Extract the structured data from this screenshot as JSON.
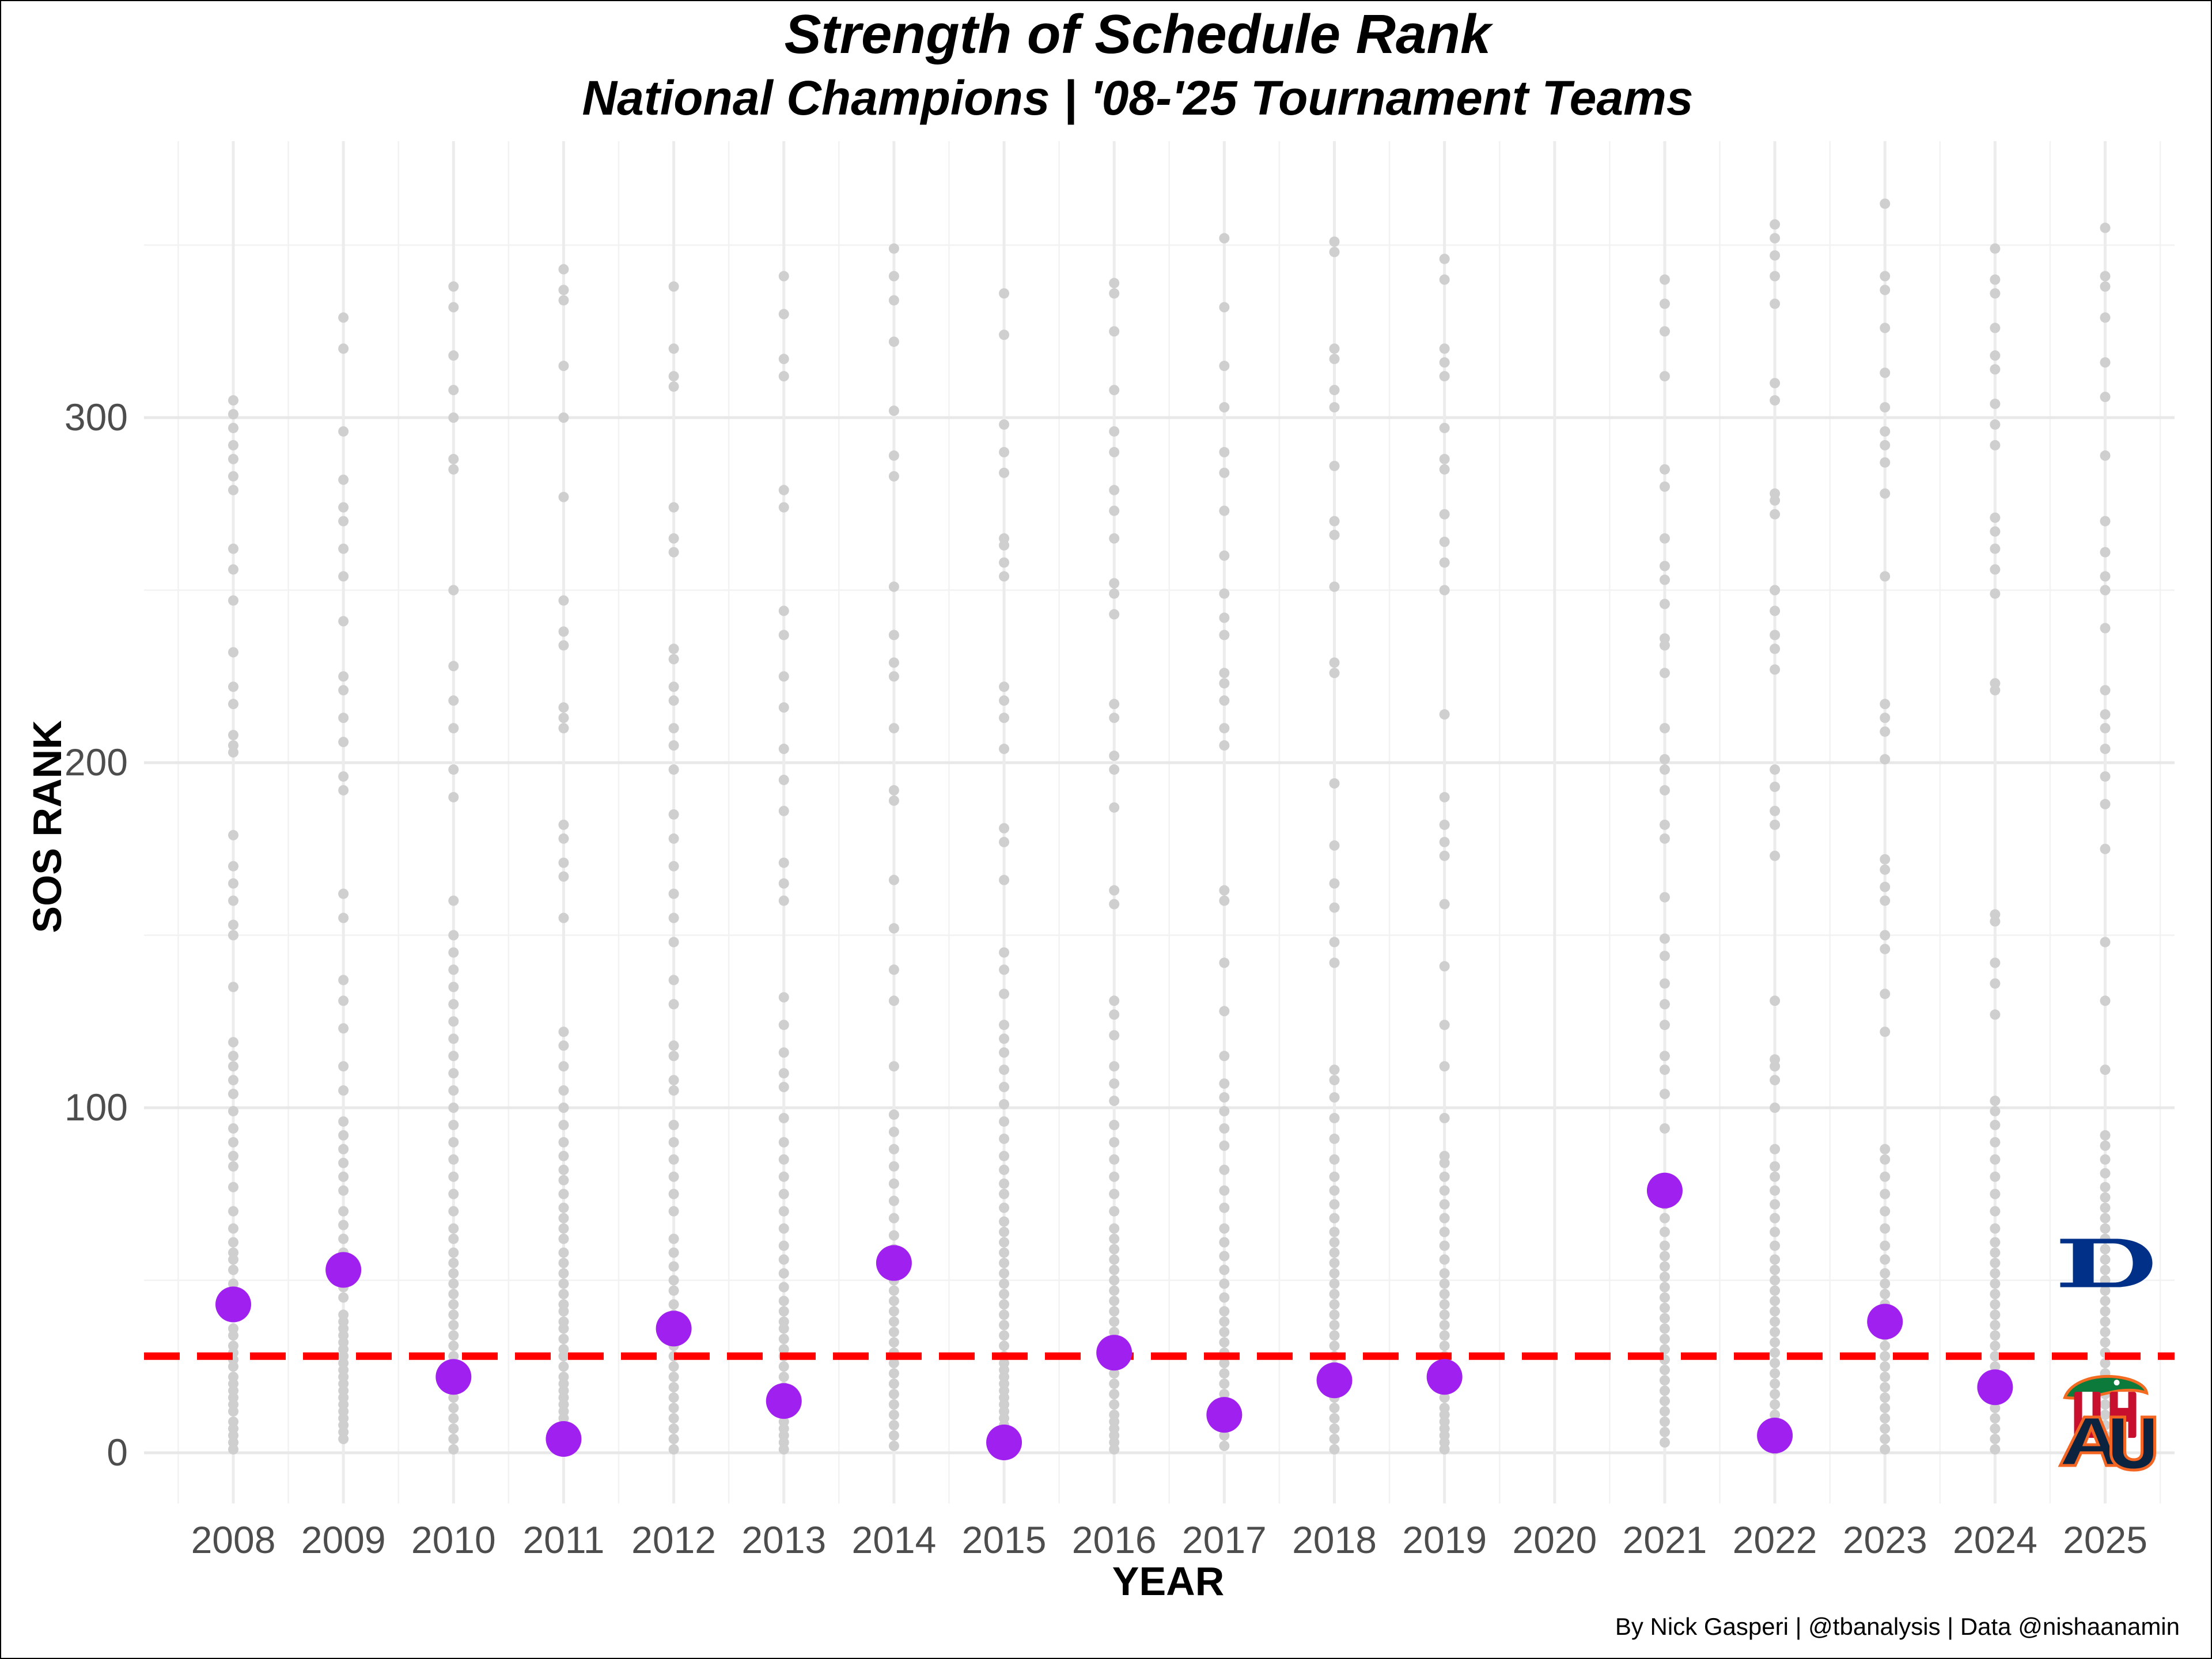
{
  "chart_data": {
    "type": "scatter",
    "title": "Strength of Schedule Rank",
    "subtitle": "National Champions | '08-'25 Tournament Teams",
    "xlabel": "YEAR",
    "ylabel": "SOS RANK",
    "caption": "By Nick Gasperi | @tbanalysis | Data @nishaanamin",
    "categories": [
      "2008",
      "2009",
      "2010",
      "2011",
      "2012",
      "2013",
      "2014",
      "2015",
      "2016",
      "2017",
      "2018",
      "2019",
      "2020",
      "2021",
      "2022",
      "2023",
      "2024",
      "2025"
    ],
    "yticks": [
      0,
      100,
      200,
      300
    ],
    "ylim": [
      -15,
      380
    ],
    "grid": true,
    "reference_line": {
      "y": 28,
      "style": "dashed",
      "color": "#ff0000"
    },
    "champions": {
      "color": "#a020f0",
      "points": [
        {
          "x": "2008",
          "y": 43
        },
        {
          "x": "2009",
          "y": 53
        },
        {
          "x": "2010",
          "y": 22
        },
        {
          "x": "2011",
          "y": 4
        },
        {
          "x": "2012",
          "y": 36
        },
        {
          "x": "2013",
          "y": 15
        },
        {
          "x": "2014",
          "y": 55
        },
        {
          "x": "2015",
          "y": 3
        },
        {
          "x": "2016",
          "y": 29
        },
        {
          "x": "2017",
          "y": 11
        },
        {
          "x": "2018",
          "y": 21
        },
        {
          "x": "2019",
          "y": 22
        },
        {
          "x": "2021",
          "y": 76
        },
        {
          "x": "2022",
          "y": 5
        },
        {
          "x": "2023",
          "y": 38
        },
        {
          "x": "2024",
          "y": 19
        }
      ]
    },
    "final_four_2025": [
      {
        "team": "Duke",
        "x": "2025",
        "y": 55,
        "icon": "duke-logo-icon",
        "color": "#003087"
      },
      {
        "team": "Florida",
        "x": "2025",
        "y": 17,
        "icon": "florida-gator-logo-icon",
        "color": "#0b7a3b"
      },
      {
        "team": "Houston",
        "x": "2025",
        "y": 11,
        "icon": "houston-uh-logo-icon",
        "color": "#c8102e"
      },
      {
        "team": "Auburn",
        "x": "2025",
        "y": 3,
        "icon": "auburn-au-logo-icon",
        "color": "#0c2340"
      }
    ],
    "tournament_teams": {
      "color": "#cfcfcf",
      "series": [
        {
          "x": "2008",
          "values": [
            1,
            3,
            5,
            7,
            9,
            12,
            14,
            16,
            18,
            20,
            22,
            25,
            27,
            29,
            31,
            34,
            36,
            40,
            42,
            44,
            46,
            49,
            53,
            56,
            58,
            61,
            65,
            70,
            77,
            83,
            86,
            90,
            94,
            99,
            104,
            108,
            112,
            115,
            119,
            135,
            150,
            153,
            160,
            165,
            170,
            179,
            203,
            205,
            208,
            217,
            222,
            232,
            247,
            256,
            262,
            279,
            283,
            288,
            292,
            297,
            301,
            305
          ]
        },
        {
          "x": "2009",
          "values": [
            4,
            6,
            8,
            10,
            12,
            14,
            16,
            18,
            20,
            22,
            24,
            26,
            28,
            30,
            32,
            34,
            36,
            38,
            40,
            45,
            48,
            50,
            58,
            62,
            66,
            70,
            76,
            80,
            84,
            88,
            92,
            96,
            105,
            112,
            123,
            131,
            137,
            155,
            162,
            192,
            196,
            206,
            213,
            221,
            225,
            241,
            254,
            262,
            270,
            274,
            282,
            296,
            320,
            329
          ]
        },
        {
          "x": "2010",
          "values": [
            1,
            4,
            7,
            10,
            13,
            16,
            19,
            22,
            25,
            28,
            31,
            34,
            37,
            40,
            43,
            46,
            49,
            52,
            55,
            58,
            62,
            65,
            70,
            75,
            80,
            85,
            90,
            95,
            100,
            105,
            110,
            115,
            120,
            125,
            130,
            135,
            140,
            145,
            150,
            160,
            190,
            198,
            210,
            218,
            228,
            250,
            285,
            288,
            300,
            308,
            318,
            332,
            338
          ]
        },
        {
          "x": "2011",
          "values": [
            2,
            4,
            6,
            8,
            10,
            12,
            14,
            16,
            18,
            20,
            22,
            25,
            28,
            30,
            33,
            36,
            38,
            41,
            43,
            46,
            49,
            52,
            55,
            58,
            62,
            65,
            68,
            71,
            75,
            79,
            82,
            86,
            90,
            95,
            100,
            105,
            112,
            118,
            122,
            155,
            167,
            171,
            178,
            182,
            210,
            213,
            216,
            234,
            238,
            247,
            277,
            300,
            315,
            334,
            337,
            343
          ]
        },
        {
          "x": "2012",
          "values": [
            1,
            4,
            7,
            10,
            13,
            16,
            19,
            22,
            25,
            28,
            31,
            34,
            37,
            40,
            43,
            47,
            50,
            54,
            58,
            62,
            70,
            75,
            80,
            85,
            90,
            95,
            105,
            108,
            115,
            118,
            130,
            137,
            148,
            155,
            162,
            170,
            178,
            185,
            198,
            205,
            210,
            218,
            222,
            230,
            233,
            261,
            265,
            274,
            309,
            312,
            320,
            338
          ]
        },
        {
          "x": "2013",
          "values": [
            1,
            3,
            5,
            7,
            9,
            11,
            13,
            15,
            17,
            19,
            22,
            25,
            28,
            30,
            33,
            36,
            38,
            41,
            44,
            48,
            52,
            56,
            60,
            65,
            70,
            75,
            80,
            85,
            90,
            97,
            106,
            110,
            116,
            124,
            132,
            160,
            165,
            171,
            186,
            195,
            204,
            216,
            225,
            237,
            244,
            274,
            279,
            312,
            317,
            330,
            341
          ]
        },
        {
          "x": "2014",
          "values": [
            2,
            5,
            8,
            11,
            14,
            17,
            20,
            23,
            26,
            29,
            32,
            35,
            38,
            41,
            44,
            47,
            50,
            53,
            56,
            59,
            63,
            68,
            73,
            78,
            83,
            88,
            93,
            98,
            112,
            131,
            140,
            152,
            166,
            189,
            192,
            210,
            225,
            229,
            237,
            251,
            283,
            289,
            302,
            322,
            334,
            341,
            349
          ]
        },
        {
          "x": "2015",
          "values": [
            2,
            4,
            6,
            8,
            10,
            12,
            14,
            16,
            18,
            20,
            22,
            24,
            26,
            28,
            31,
            34,
            37,
            40,
            43,
            46,
            49,
            52,
            55,
            58,
            61,
            64,
            67,
            71,
            75,
            78,
            82,
            86,
            91,
            96,
            101,
            106,
            111,
            116,
            120,
            124,
            133,
            140,
            145,
            166,
            177,
            181,
            204,
            213,
            218,
            222,
            254,
            258,
            263,
            265,
            284,
            290,
            298,
            324,
            336
          ]
        },
        {
          "x": "2016",
          "values": [
            1,
            3,
            5,
            7,
            9,
            11,
            14,
            17,
            20,
            23,
            26,
            29,
            32,
            35,
            38,
            41,
            44,
            47,
            50,
            53,
            56,
            59,
            62,
            65,
            70,
            75,
            80,
            85,
            90,
            95,
            102,
            107,
            112,
            121,
            127,
            131,
            159,
            163,
            187,
            198,
            202,
            213,
            217,
            243,
            249,
            252,
            265,
            273,
            279,
            290,
            296,
            308,
            325,
            336,
            339
          ]
        },
        {
          "x": "2017",
          "values": [
            2,
            5,
            8,
            11,
            14,
            17,
            20,
            23,
            26,
            29,
            32,
            35,
            38,
            41,
            45,
            49,
            53,
            57,
            61,
            65,
            71,
            76,
            82,
            89,
            94,
            99,
            103,
            107,
            115,
            128,
            142,
            160,
            163,
            205,
            210,
            218,
            223,
            226,
            237,
            242,
            249,
            260,
            273,
            284,
            290,
            303,
            315,
            332,
            352
          ]
        },
        {
          "x": "2018",
          "values": [
            1,
            4,
            7,
            10,
            13,
            16,
            19,
            22,
            25,
            28,
            31,
            34,
            37,
            40,
            43,
            46,
            49,
            52,
            55,
            58,
            61,
            64,
            68,
            72,
            76,
            80,
            85,
            91,
            97,
            103,
            108,
            111,
            142,
            148,
            158,
            165,
            176,
            194,
            226,
            229,
            251,
            266,
            270,
            286,
            303,
            308,
            317,
            320,
            348,
            351
          ]
        },
        {
          "x": "2019",
          "values": [
            1,
            3,
            5,
            7,
            9,
            11,
            13,
            16,
            19,
            22,
            25,
            28,
            31,
            34,
            37,
            40,
            43,
            46,
            49,
            52,
            56,
            60,
            64,
            68,
            72,
            76,
            80,
            84,
            86,
            97,
            112,
            124,
            141,
            159,
            173,
            177,
            182,
            190,
            214,
            250,
            258,
            264,
            272,
            285,
            288,
            297,
            312,
            316,
            320,
            340,
            346
          ]
        },
        {
          "x": "2021",
          "values": [
            3,
            6,
            9,
            12,
            15,
            18,
            21,
            24,
            27,
            30,
            33,
            36,
            39,
            42,
            45,
            48,
            51,
            54,
            57,
            60,
            64,
            68,
            72,
            79,
            94,
            104,
            111,
            115,
            124,
            130,
            136,
            144,
            149,
            161,
            178,
            182,
            192,
            198,
            201,
            210,
            226,
            234,
            236,
            246,
            253,
            257,
            265,
            280,
            285,
            312,
            325,
            333,
            340
          ]
        },
        {
          "x": "2022",
          "values": [
            1,
            3,
            5,
            7,
            9,
            11,
            14,
            17,
            20,
            23,
            26,
            29,
            32,
            35,
            38,
            41,
            44,
            47,
            50,
            53,
            56,
            60,
            64,
            68,
            72,
            76,
            80,
            83,
            88,
            100,
            108,
            112,
            114,
            131,
            173,
            182,
            186,
            193,
            198,
            227,
            233,
            237,
            244,
            250,
            272,
            276,
            278,
            305,
            310,
            333,
            341,
            347,
            352,
            356
          ]
        },
        {
          "x": "2023",
          "values": [
            1,
            4,
            7,
            10,
            13,
            16,
            19,
            22,
            25,
            28,
            31,
            34,
            37,
            40,
            43,
            46,
            49,
            52,
            56,
            60,
            65,
            70,
            75,
            80,
            85,
            88,
            122,
            133,
            146,
            150,
            160,
            164,
            169,
            172,
            201,
            209,
            213,
            217,
            254,
            278,
            287,
            292,
            296,
            303,
            313,
            326,
            337,
            341,
            362
          ]
        },
        {
          "x": "2024",
          "values": [
            1,
            4,
            7,
            10,
            13,
            16,
            19,
            22,
            25,
            28,
            31,
            34,
            37,
            40,
            43,
            46,
            49,
            52,
            55,
            58,
            61,
            65,
            70,
            75,
            80,
            85,
            90,
            95,
            99,
            102,
            127,
            136,
            142,
            154,
            156,
            221,
            223,
            249,
            256,
            262,
            267,
            271,
            292,
            298,
            304,
            314,
            318,
            326,
            336,
            340,
            349
          ]
        },
        {
          "x": "2025",
          "values": [
            2,
            5,
            8,
            11,
            14,
            17,
            20,
            23,
            26,
            29,
            32,
            35,
            38,
            41,
            44,
            47,
            50,
            53,
            56,
            59,
            62,
            65,
            68,
            71,
            74,
            77,
            81,
            85,
            89,
            92,
            111,
            131,
            148,
            175,
            188,
            196,
            204,
            210,
            214,
            221,
            239,
            250,
            254,
            261,
            270,
            289,
            306,
            316,
            329,
            338,
            341,
            355
          ]
        }
      ]
    }
  }
}
